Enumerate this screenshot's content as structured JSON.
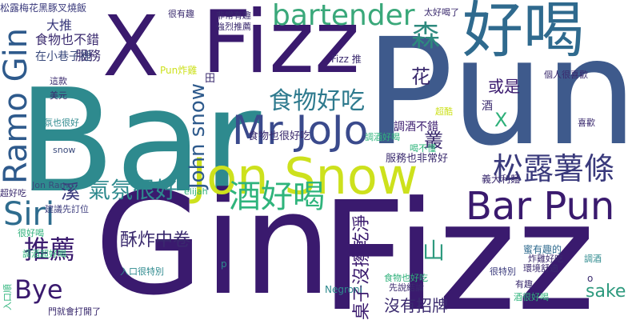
{
  "words": [
    {
      "text": "Bar",
      "color": "#2e8a8e",
      "rotated": false
    },
    {
      "text": "Pun",
      "color": "#3e5a8c",
      "rotated": false
    },
    {
      "text": "Gin",
      "color": "#3a1a6e",
      "rotated": false
    },
    {
      "text": "Fizz",
      "color": "#3a1a6e",
      "rotated": false
    },
    {
      "text": "Fizz",
      "color": "#3a1a6e",
      "rotated": false
    },
    {
      "text": "X",
      "color": "#3a1a6e",
      "rotated": false
    },
    {
      "text": "好喝",
      "color": "#2f6a8e",
      "rotated": false
    },
    {
      "text": "Jon Snow",
      "color": "#cde11d",
      "rotated": false
    },
    {
      "text": "Mr JoJo",
      "color": "#3a4a8c",
      "rotated": false
    },
    {
      "text": "Bar Pun",
      "color": "#3a1a6e",
      "rotated": false
    },
    {
      "text": "松露薯條",
      "color": "#3a3a7c",
      "rotated": false
    },
    {
      "text": "酒好喝",
      "color": "#2fb47c",
      "rotated": false
    },
    {
      "text": "Ramo Gin",
      "color": "#2e5a8c",
      "rotated": true
    },
    {
      "text": "Siri",
      "color": "#2e6c8e",
      "rotated": false
    },
    {
      "text": "推薦",
      "color": "#3a1a6e",
      "rotated": false
    },
    {
      "text": "Bye",
      "color": "#3a1a6e",
      "rotated": false
    },
    {
      "text": "bartender",
      "color": "#3aa87a",
      "rotated": false
    },
    {
      "text": "食物好吃",
      "color": "#2e7a8e",
      "rotated": false
    },
    {
      "text": "氣氛很好",
      "color": "#2e8a8e",
      "rotated": false
    },
    {
      "text": "John snow",
      "color": "#2e5a8c",
      "rotated": true
    },
    {
      "text": "酥炸中卷",
      "color": "#3a2a6e",
      "rotated": false
    },
    {
      "text": "森",
      "color": "#2e8a7e",
      "rotated": false
    },
    {
      "text": "山",
      "color": "#2e9a7e",
      "rotated": false
    },
    {
      "text": "sake",
      "color": "#2e9a7e",
      "rotated": false
    },
    {
      "text": "桌子沒擦乾淨",
      "color": "#3a1a6e",
      "rotated": true
    },
    {
      "text": "沒有招牌",
      "color": "#3a2a6e",
      "rotated": false
    },
    {
      "text": "花",
      "color": "#3a2a6e",
      "rotated": false
    },
    {
      "text": "叢",
      "color": "#3a2a6e",
      "rotated": false
    },
    {
      "text": "溪",
      "color": "#3a3a7c",
      "rotated": false
    },
    {
      "text": "X",
      "color": "#2eb07a",
      "rotated": false
    },
    {
      "text": "或是",
      "color": "#3a1a6e",
      "rotated": false
    },
    {
      "text": "食物也不錯",
      "color": "#3a2a6e",
      "rotated": false
    },
    {
      "text": "服務",
      "color": "#3a2a6e",
      "rotated": false
    },
    {
      "text": "大推",
      "color": "#3a3a7c",
      "rotated": false
    },
    {
      "text": "在小巷子裡",
      "color": "#3a4a7c",
      "rotated": false
    },
    {
      "text": "調酒不錯",
      "color": "#3a1a6e",
      "rotated": false
    },
    {
      "text": "服務也非常好",
      "color": "#3a2a6e",
      "rotated": false
    },
    {
      "text": "食物也很好吃",
      "color": "#3a2a6e",
      "rotated": false
    },
    {
      "text": "義大利麵",
      "color": "#3a2a6e",
      "rotated": false
    },
    {
      "text": "蜜有趣的",
      "color": "#2e6a8e",
      "rotated": false
    },
    {
      "text": "松露梅花黑豚叉燒飯",
      "color": "#3a3a7c",
      "rotated": false
    },
    {
      "text": "Pun炸雞",
      "color": "#cde11d",
      "rotated": false
    },
    {
      "text": "Fizz 推",
      "color": "#3a2a6e",
      "rotated": false
    },
    {
      "text": "Negroni",
      "color": "#2e8a8e",
      "rotated": false
    },
    {
      "text": "snow",
      "color": "#3a4a7c",
      "rotated": false
    },
    {
      "text": "elijah",
      "color": "#2eb07a",
      "rotated": false
    },
    {
      "text": "Jon Ramo",
      "color": "#3a4a7c",
      "rotated": false
    },
    {
      "text": "建議先訂位",
      "color": "#3a3a7c",
      "rotated": false
    },
    {
      "text": "超好吃",
      "color": "#3a2a6e",
      "rotated": false
    },
    {
      "text": "很好喝",
      "color": "#2eb07a",
      "rotated": false
    },
    {
      "text": "調酒超好喝",
      "color": "#2fb47c",
      "rotated": false
    },
    {
      "text": "入口很特別",
      "color": "#2e8a8e",
      "rotated": false
    },
    {
      "text": "入口順",
      "color": "#2fb47c",
      "rotated": true
    },
    {
      "text": "門就會打開了",
      "color": "#3a2a6e",
      "rotated": false
    },
    {
      "text": "炸雞好吃",
      "color": "#3a2a6e",
      "rotated": false
    },
    {
      "text": "環境舒適",
      "color": "#3a2a6e",
      "rotated": false
    },
    {
      "text": "食物也好吃",
      "color": "#2eb07a",
      "rotated": false
    },
    {
      "text": "先說結論",
      "color": "#3a2a6e",
      "rotated": false
    },
    {
      "text": "有趣",
      "color": "#3a2a6e",
      "rotated": false
    },
    {
      "text": "酒很好喝",
      "color": "#2fb47c",
      "rotated": false
    },
    {
      "text": "很有趣",
      "color": "#3a2a6e",
      "rotated": false
    },
    {
      "text": "非常有趣",
      "color": "#3a2a6e",
      "rotated": false
    },
    {
      "text": "強烈推薦",
      "color": "#3a2a6e",
      "rotated": false
    },
    {
      "text": "太好喝了",
      "color": "#3a2a6e",
      "rotated": false
    },
    {
      "text": "這款",
      "color": "#3a2a6e",
      "rotated": false
    },
    {
      "text": "美元",
      "color": "#3a2a6e",
      "rotated": false
    },
    {
      "text": "氣氛也很好",
      "color": "#2e8a8e",
      "rotated": false
    },
    {
      "text": "調酒好喝",
      "color": "#2fb47c",
      "rotated": false
    },
    {
      "text": "喝不懂",
      "color": "#2fb47c",
      "rotated": false
    },
    {
      "text": "調酒",
      "color": "#2e8a8e",
      "rotated": false
    },
    {
      "text": "喜歡",
      "color": "#3a2a6e",
      "rotated": false
    },
    {
      "text": "個人很喜歡",
      "color": "#3a2a6e",
      "rotated": false
    },
    {
      "text": "很特別",
      "color": "#3a3a7c",
      "rotated": false
    },
    {
      "text": "酒",
      "color": "#3a2a6e",
      "rotated": false
    },
    {
      "text": "超酷",
      "color": "#cde11d",
      "rotated": false
    },
    {
      "text": "p",
      "color": "#2e8a8e",
      "rotated": false
    },
    {
      "text": "o",
      "color": "#3a2a6e",
      "rotated": false
    },
    {
      "text": "田",
      "color": "#3a2a6e",
      "rotated": false
    }
  ]
}
